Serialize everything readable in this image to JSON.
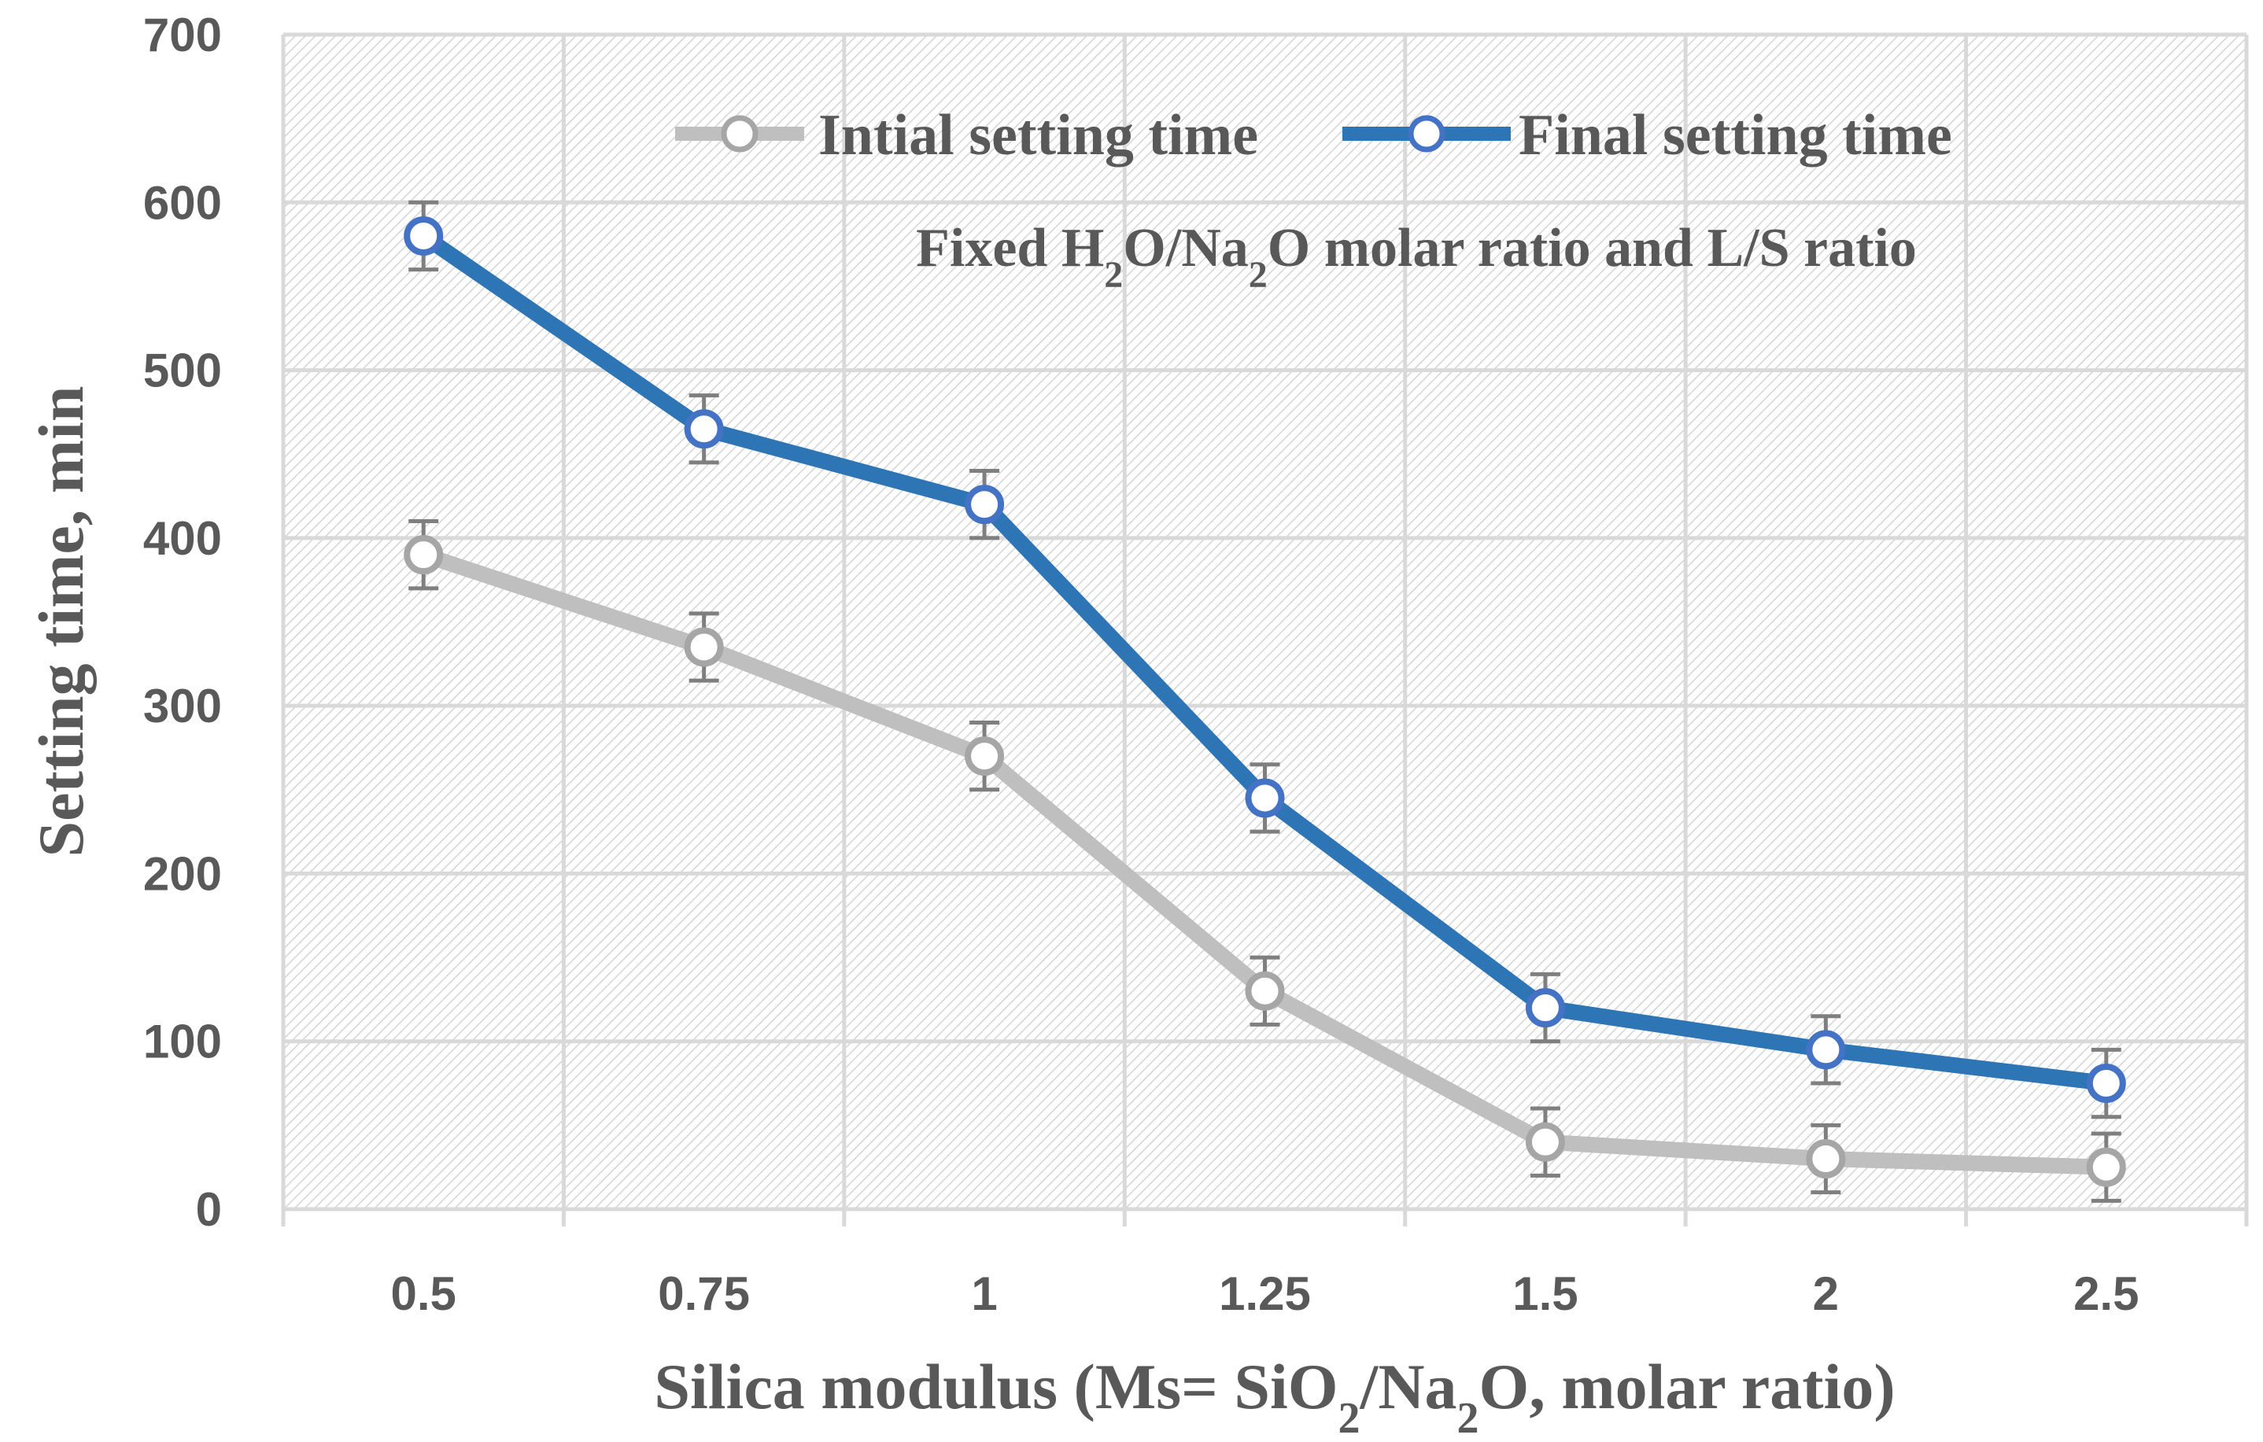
{
  "chart_data": {
    "type": "line",
    "categories": [
      "0.5",
      "0.75",
      "1",
      "1.25",
      "1.5",
      "2",
      "2.5"
    ],
    "series": [
      {
        "name": "Intial setting time",
        "color": "#BFBFBF",
        "marker_stroke": "#A6A6A6",
        "values": [
          390,
          335,
          270,
          130,
          40,
          30,
          25
        ],
        "error": [
          20,
          20,
          20,
          20,
          20,
          20,
          20
        ]
      },
      {
        "name": "Final setting time",
        "color": "#2E75B6",
        "marker_stroke": "#4472C4",
        "values": [
          580,
          465,
          420,
          245,
          120,
          95,
          75
        ],
        "error": [
          20,
          20,
          20,
          20,
          20,
          20,
          20
        ]
      }
    ],
    "yticks": [
      "0",
      "100",
      "200",
      "300",
      "400",
      "500",
      "600",
      "700"
    ],
    "ylim": [
      0,
      700
    ],
    "ylabel": "Setting time, min",
    "xlabel": {
      "pre": "Silica modulus (Ms= SiO",
      "sub1": "2",
      "mid": "/Na",
      "sub2": "2",
      "post": "O, molar ratio)"
    },
    "annotation": {
      "pre": "Fixed H",
      "sub1": "2",
      "mid": "O/Na",
      "sub2": "2",
      "post": "O molar ratio and L/S ratio"
    },
    "legend_position": "top-center",
    "grid": true
  }
}
